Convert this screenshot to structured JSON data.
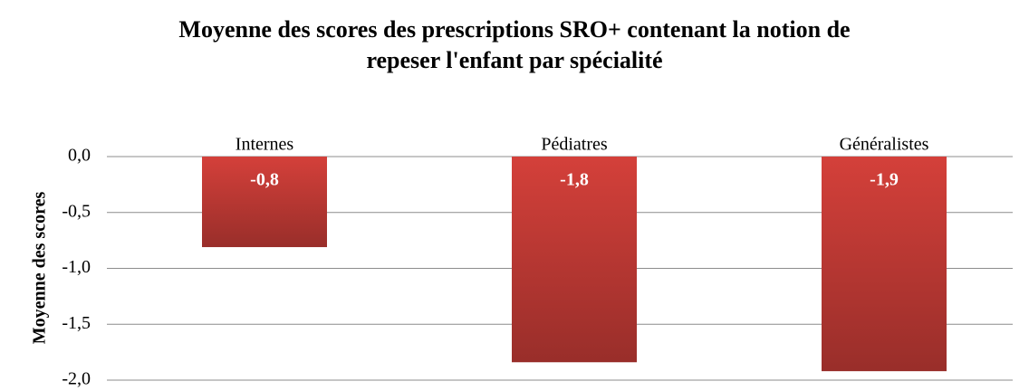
{
  "chart_data": {
    "type": "bar",
    "title": "Moyenne des scores des prescriptions SRO+ contenant la notion de repeser l'enfant par spécialité",
    "y_label": "Moyenne des scores",
    "categories": [
      "Internes",
      "Pédiatres",
      "Généralistes"
    ],
    "values": [
      -0.81,
      -1.84,
      -1.92
    ],
    "value_labels": [
      "-0,8",
      "-1,8",
      "-1,9"
    ],
    "color": "#d4403a",
    "ylim": [
      -2,
      0
    ],
    "yticks": [
      {
        "value": 0,
        "label": "0,0"
      },
      {
        "value": -0.5,
        "label": "-0,5"
      },
      {
        "value": -1,
        "label": "-1,0"
      },
      {
        "value": -1.5,
        "label": "-1,5"
      },
      {
        "value": -2,
        "label": "-2,0"
      }
    ],
    "grid": true
  }
}
